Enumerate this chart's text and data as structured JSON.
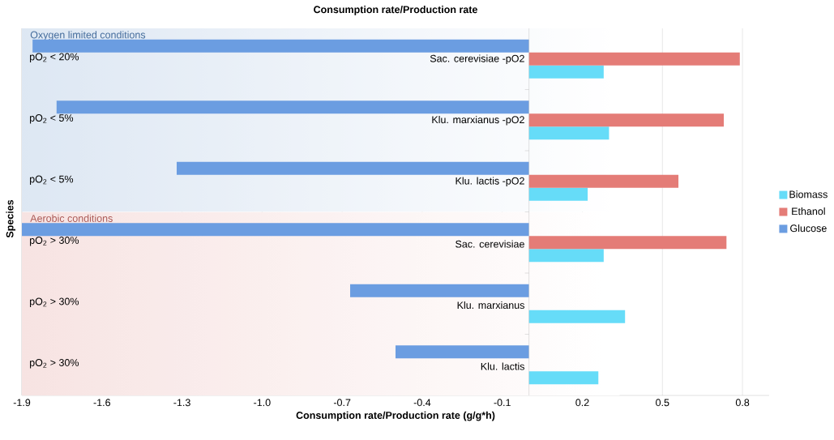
{
  "chart_data": {
    "type": "bar",
    "orientation": "horizontal",
    "title": "Consumption rate/Production rate",
    "xlabel": "Consumption rate/Production rate (g/g*h)",
    "ylabel": "Species",
    "categories": [
      "Sac. cerevisiae -pO2",
      "Klu. marxianus -pO2",
      "Klu. lactis -pO2",
      "Sac. cerevisiae",
      "Klu. marxianus",
      "Klu. lactis"
    ],
    "series": [
      {
        "name": "Biomass",
        "color": "#66dcf8",
        "values": [
          0.28,
          0.3,
          0.22,
          0.28,
          0.36,
          0.26
        ]
      },
      {
        "name": "Ethanol",
        "color": "#e47c77",
        "values": [
          0.79,
          0.73,
          0.56,
          0.74,
          null,
          null
        ]
      },
      {
        "name": "Glucose",
        "color": "#6b9de1",
        "values": [
          -1.86,
          -1.77,
          -1.32,
          -1.9,
          -0.67,
          -0.5
        ]
      }
    ],
    "xlim": [
      -1.9,
      0.9
    ],
    "xticks": [
      -1.9,
      -1.6,
      -1.3,
      {
        "value": -1.0,
        "label": "-1.0"
      },
      -0.7,
      -0.4,
      -0.1,
      0.2,
      0.5,
      0.8
    ],
    "grid": "x",
    "legend": "right",
    "bands": [
      {
        "axis": "y",
        "from": "Sac. cerevisiae -pO2",
        "to": "Klu. lactis -pO2",
        "label": "Oxygen limited conditions",
        "color": "#dde7f3"
      },
      {
        "axis": "y",
        "from": "Sac. cerevisiae",
        "to": "Klu. lactis",
        "label": "Aerobic conditions",
        "color": "#f7e3e2"
      }
    ],
    "annotations": [
      "pO$_{2}$ < 20%",
      "pO$_{2}$ < 5%",
      "pO$_{2}$ < 5%",
      "pO$_{2}$ > 30%",
      "pO$_{2}$ > 30%",
      "pO$_{2}$ > 30%"
    ]
  }
}
